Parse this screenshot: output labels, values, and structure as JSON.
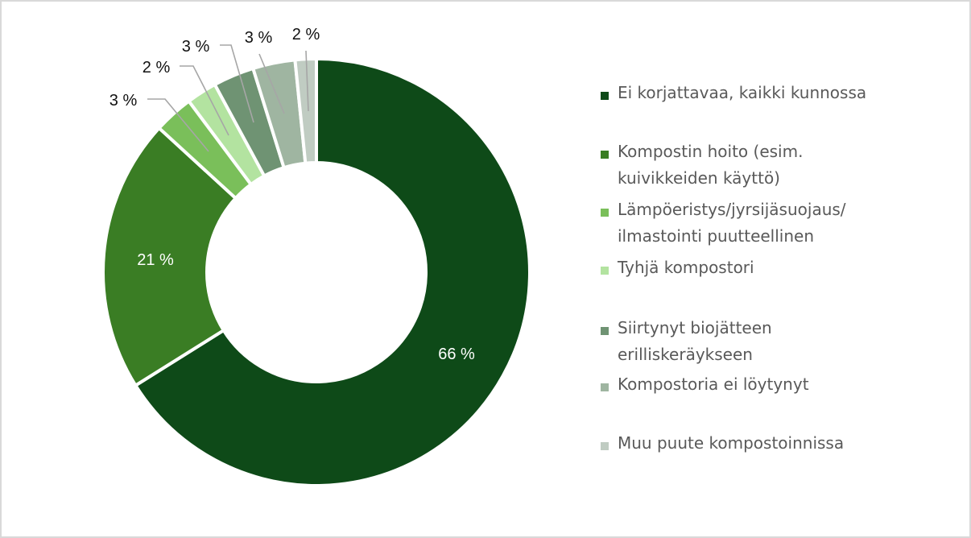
{
  "chart_data": {
    "type": "pie",
    "variant": "donut",
    "title": "",
    "categories": [
      "Ei korjattavaa, kaikki kunnossa",
      "Kompostin hoito (esim. kuivikkeiden käyttö)",
      "Lämpöeristys/jyrsijäsuojaus/ ilmastointi puutteellinen",
      "Tyhjä kompostori",
      "Siirtynyt biojätteen erilliskeräykseen",
      "Kompostoria ei löytynyt",
      "Muu puute kompostoinnissa"
    ],
    "values": [
      66.1,
      20.7,
      3.0,
      2.3,
      3.1,
      3.2,
      1.6
    ],
    "data_labels": [
      "66 %",
      "21 %",
      "3 %",
      "2 %",
      "3 %",
      "3 %",
      "2 %"
    ],
    "colors": [
      "#0e4a18",
      "#3a7d24",
      "#7abf5a",
      "#b3e3a0",
      "#6f9373",
      "#9fb5a1",
      "#c0ccc2"
    ],
    "legend_position": "right",
    "start_angle_deg": 0,
    "direction": "clockwise"
  },
  "legend": {
    "items": [
      {
        "label": "Ei korjattavaa, kaikki kunnossa",
        "color": "#0e4a18"
      },
      {
        "label": "Kompostin hoito (esim.\nkuivikkeiden käyttö)",
        "color": "#3a7d24"
      },
      {
        "label": "Lämpöeristys/jyrsijäsuojaus/\nilmastointi puutteellinen",
        "color": "#7abf5a"
      },
      {
        "label": "Tyhjä kompostori",
        "color": "#b3e3a0"
      },
      {
        "label": "Siirtynyt biojätteen\nerilliskeräykseen",
        "color": "#6f9373"
      },
      {
        "label": "Kompostoria ei löytynyt",
        "color": "#9fb5a1"
      },
      {
        "label": "Muu puute kompostoinnissa",
        "color": "#c0ccc2"
      }
    ]
  }
}
